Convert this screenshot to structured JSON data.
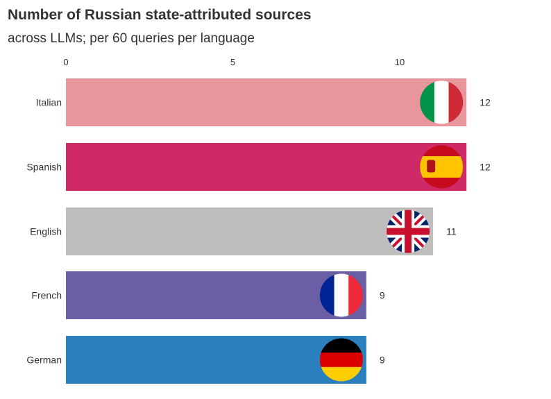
{
  "chart_data": {
    "type": "bar",
    "title": "Number of Russian state-attributed sources",
    "subtitle": "across LLMs; per 60 queries per language",
    "xlim": [
      0,
      12
    ],
    "xticks": [
      0,
      5,
      10
    ],
    "categories": [
      "Italian",
      "Spanish",
      "English",
      "French",
      "German"
    ],
    "values": [
      12,
      12,
      11,
      9,
      9
    ],
    "colors": [
      "#e8959c",
      "#cf2a67",
      "#bfbebc",
      "#6a5fa4",
      "#2a80bf"
    ],
    "flags": [
      "italy-flag",
      "spain-flag",
      "uk-flag",
      "france-flag",
      "germany-flag"
    ]
  }
}
